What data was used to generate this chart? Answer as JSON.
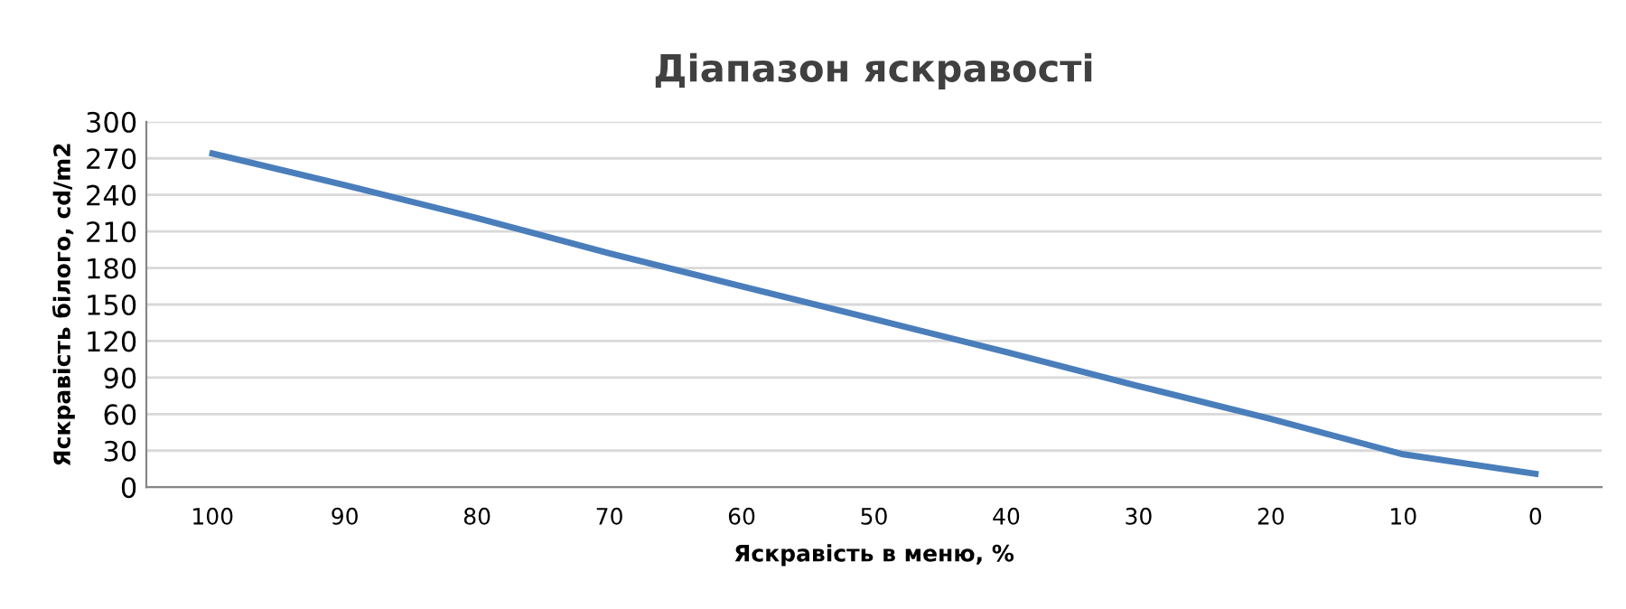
{
  "chart_data": {
    "type": "line",
    "title": "Діапазон яскравості",
    "xlabel": "Яскравість в меню, %",
    "ylabel": "Яскравість білого, cd/m2",
    "categories": [
      "100",
      "90",
      "80",
      "70",
      "60",
      "50",
      "40",
      "30",
      "20",
      "10",
      "0"
    ],
    "series": [
      {
        "color": "#4a7ebb",
        "values": [
          274,
          248,
          221,
          192,
          165,
          138,
          111,
          83,
          56,
          27,
          11
        ]
      }
    ],
    "ylim": [
      0,
      300
    ],
    "yticks": [
      0,
      30,
      60,
      90,
      120,
      150,
      180,
      210,
      240,
      270,
      300
    ],
    "grid": "y",
    "legend": false,
    "marker": "none",
    "line_style": "solid"
  }
}
